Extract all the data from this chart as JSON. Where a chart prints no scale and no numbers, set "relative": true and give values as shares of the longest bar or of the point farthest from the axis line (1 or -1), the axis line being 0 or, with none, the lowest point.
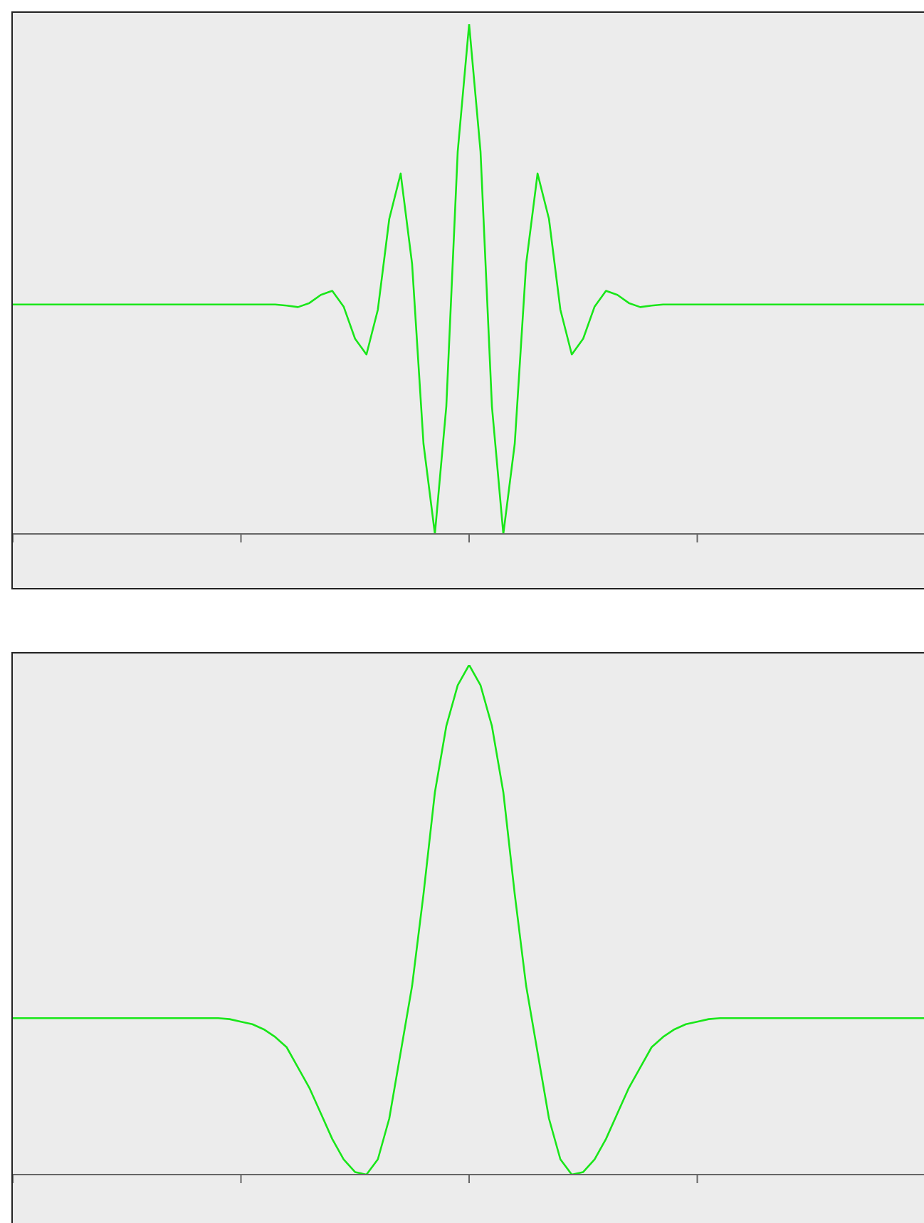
{
  "chart_data": [
    {
      "type": "line",
      "relative": true,
      "color": "#19e619",
      "categories": [
        null,
        null,
        null,
        null,
        null,
        null,
        null,
        null,
        null,
        null,
        null,
        null,
        null,
        null,
        null,
        null,
        null,
        null,
        null,
        null,
        null,
        null,
        null,
        null,
        null,
        null,
        null,
        null,
        null,
        null,
        null,
        null,
        null,
        null,
        null,
        null,
        null,
        null,
        null,
        null,
        null,
        null,
        null,
        null,
        null,
        null,
        null,
        null,
        null,
        null,
        null,
        null,
        null,
        null,
        null,
        null,
        null,
        null,
        null,
        null,
        null,
        null,
        null,
        null,
        null,
        null,
        null,
        null,
        null,
        null,
        null,
        null,
        null,
        null,
        null,
        null,
        null,
        null,
        null,
        null,
        null
      ],
      "values": [
        0.45,
        0.45,
        0.45,
        0.45,
        0.45,
        0.45,
        0.45,
        0.45,
        0.45,
        0.45,
        0.45,
        0.45,
        0.45,
        0.45,
        0.45,
        0.45,
        0.45,
        0.45,
        0.45,
        0.45,
        0.45,
        0.45,
        0.45,
        0.45,
        0.448,
        0.445,
        0.453,
        0.469,
        0.477,
        0.446,
        0.383,
        0.352,
        0.44,
        0.618,
        0.707,
        0.53,
        0.177,
        0,
        0.25,
        0.75,
        1,
        0.75,
        0.25,
        0,
        0.177,
        0.53,
        0.707,
        0.618,
        0.44,
        0.352,
        0.383,
        0.446,
        0.477,
        0.469,
        0.453,
        0.445,
        0.448,
        0.45,
        0.45,
        0.45,
        0.45,
        0.45,
        0.45,
        0.45,
        0.45,
        0.45,
        0.45,
        0.45,
        0.45,
        0.45,
        0.45,
        0.45,
        0.45,
        0.45,
        0.45,
        0.45,
        0.45,
        0.45,
        0.45,
        0.45,
        0.45
      ]
    },
    {
      "type": "line",
      "relative": true,
      "color": "#19e619",
      "categories": [
        null,
        null,
        null,
        null,
        null,
        null,
        null,
        null,
        null,
        null,
        null,
        null,
        null,
        null,
        null,
        null,
        null,
        null,
        null,
        null,
        null,
        null,
        null,
        null,
        null,
        null,
        null,
        null,
        null,
        null,
        null,
        null,
        null,
        null,
        null,
        null,
        null,
        null,
        null,
        null,
        null,
        null,
        null,
        null,
        null,
        null,
        null,
        null,
        null,
        null,
        null,
        null,
        null,
        null,
        null,
        null,
        null,
        null,
        null,
        null,
        null,
        null,
        null,
        null,
        null,
        null,
        null,
        null,
        null,
        null,
        null,
        null,
        null,
        null,
        null,
        null,
        null,
        null,
        null,
        null,
        null
      ],
      "values": [
        0.307,
        0.307,
        0.307,
        0.307,
        0.307,
        0.307,
        0.307,
        0.307,
        0.307,
        0.307,
        0.307,
        0.307,
        0.307,
        0.307,
        0.307,
        0.307,
        0.307,
        0.307,
        0.307,
        0.305,
        0.3,
        0.295,
        0.285,
        0.27,
        0.25,
        0.21,
        0.17,
        0.12,
        0.07,
        0.03,
        0.005,
        0,
        0.03,
        0.11,
        0.24,
        0.37,
        0.55,
        0.75,
        0.88,
        0.96,
        1,
        0.96,
        0.88,
        0.75,
        0.55,
        0.37,
        0.24,
        0.11,
        0.03,
        0,
        0.005,
        0.03,
        0.07,
        0.12,
        0.17,
        0.21,
        0.25,
        0.27,
        0.285,
        0.295,
        0.3,
        0.305,
        0.307,
        0.307,
        0.307,
        0.307,
        0.307,
        0.307,
        0.307,
        0.307,
        0.307,
        0.307,
        0.307,
        0.307,
        0.307,
        0.307,
        0.307,
        0.307,
        0.307,
        0.307,
        0.307
      ]
    }
  ]
}
